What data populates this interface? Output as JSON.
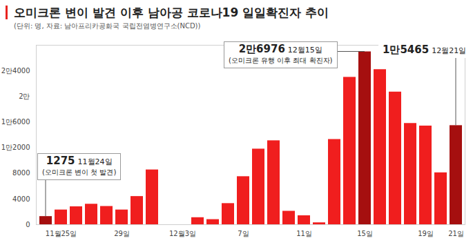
{
  "chart_data": {
    "type": "bar",
    "title": "오미크론 변이 발견 이후 남아공 코로나19 일일확진자 추이",
    "subtitle": "(단위: 명, 자료: 남아프리카공화국 국립전염병연구소(NCD))",
    "categories": [
      null,
      "11월25일",
      null,
      null,
      null,
      "29일",
      null,
      null,
      null,
      "12월3일",
      null,
      null,
      null,
      "7일",
      null,
      null,
      null,
      "11일",
      null,
      null,
      null,
      "15일",
      null,
      null,
      null,
      "19일",
      null,
      "21일"
    ],
    "values": [
      1275,
      2300,
      2800,
      3200,
      2850,
      2300,
      4400,
      8550,
      null,
      null,
      1100,
      800,
      3300,
      7500,
      11800,
      13100,
      2100,
      1400,
      300,
      13300,
      23000,
      26976,
      24200,
      20700,
      15800,
      15400,
      8100,
      15465
    ],
    "colors": [
      "#a50f0f",
      "#f01e1e",
      "#f01e1e",
      "#f01e1e",
      "#f01e1e",
      "#f01e1e",
      "#f01e1e",
      "#f01e1e",
      "#f01e1e",
      "#f01e1e",
      "#f01e1e",
      "#f01e1e",
      "#f01e1e",
      "#f01e1e",
      "#f01e1e",
      "#f01e1e",
      "#f01e1e",
      "#f01e1e",
      "#f01e1e",
      "#f01e1e",
      "#f01e1e",
      "#a50f0f",
      "#f01e1e",
      "#f01e1e",
      "#f01e1e",
      "#f01e1e",
      "#f01e1e",
      "#a50f0f"
    ],
    "ylim": [
      0,
      28000
    ],
    "yticks": [
      0,
      4000,
      8000,
      {
        "value": 12000,
        "label": "1만2000"
      },
      {
        "value": 16000,
        "label": "1만6000"
      },
      {
        "value": 20000,
        "label": "2만"
      },
      {
        "value": 24000,
        "label": "2만4000"
      }
    ],
    "grid": false,
    "annotations": [
      {
        "value": 1275,
        "label": "1275",
        "date": "11월24일",
        "note": "(오미크론 변이 첫 발견)"
      },
      {
        "value": 26976,
        "label": "2만6976",
        "date": "12월15일",
        "note": "(오미크론 유행 이후 최대 확진자)"
      },
      {
        "value": 15465,
        "label": "1만5465",
        "date": "12월21일"
      }
    ]
  }
}
